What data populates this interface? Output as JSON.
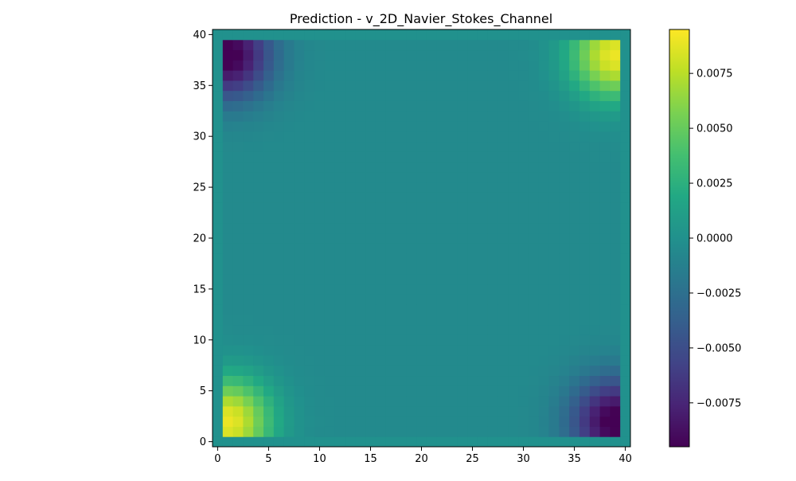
{
  "chart_data": {
    "type": "heatmap",
    "title": "Prediction - v_2D_Navier_Stokes_Channel",
    "xlabel": "",
    "ylabel": "",
    "grid_size": [
      41,
      41
    ],
    "xlim": [
      -0.5,
      40.5
    ],
    "ylim": [
      -0.5,
      40.5
    ],
    "origin": "lower",
    "x_ticks": [
      0,
      5,
      10,
      15,
      20,
      25,
      30,
      35,
      40
    ],
    "x_tick_labels": [
      "0",
      "5",
      "10",
      "15",
      "20",
      "25",
      "30",
      "35",
      "40"
    ],
    "y_ticks": [
      0,
      5,
      10,
      15,
      20,
      25,
      30,
      35,
      40
    ],
    "y_tick_labels": [
      "0",
      "5",
      "10",
      "15",
      "20",
      "25",
      "30",
      "35",
      "40"
    ],
    "colormap": "viridis",
    "vmin": -0.0095,
    "vmax": 0.0095,
    "colorbar_ticks": [
      0.0075,
      0.005,
      0.0025,
      0.0,
      -0.0025,
      -0.005,
      -0.0075
    ],
    "colorbar_tick_labels": [
      "0.0075",
      "0.0050",
      "0.0025",
      "0.0000",
      "−0.0025",
      "−0.0050",
      "−0.0075"
    ],
    "field_summary": {
      "boundary_value": 0.0,
      "corner_extrema": [
        {
          "corner": "bottom-left",
          "x": 1,
          "y": 2,
          "value": 0.0095
        },
        {
          "corner": "top-right",
          "x": 39,
          "y": 38,
          "value": 0.0095
        },
        {
          "corner": "top-left",
          "x": 1,
          "y": 38,
          "value": -0.0095
        },
        {
          "corner": "bottom-right",
          "x": 39,
          "y": 2,
          "value": -0.0095
        }
      ],
      "center_value": -0.0005
    }
  }
}
